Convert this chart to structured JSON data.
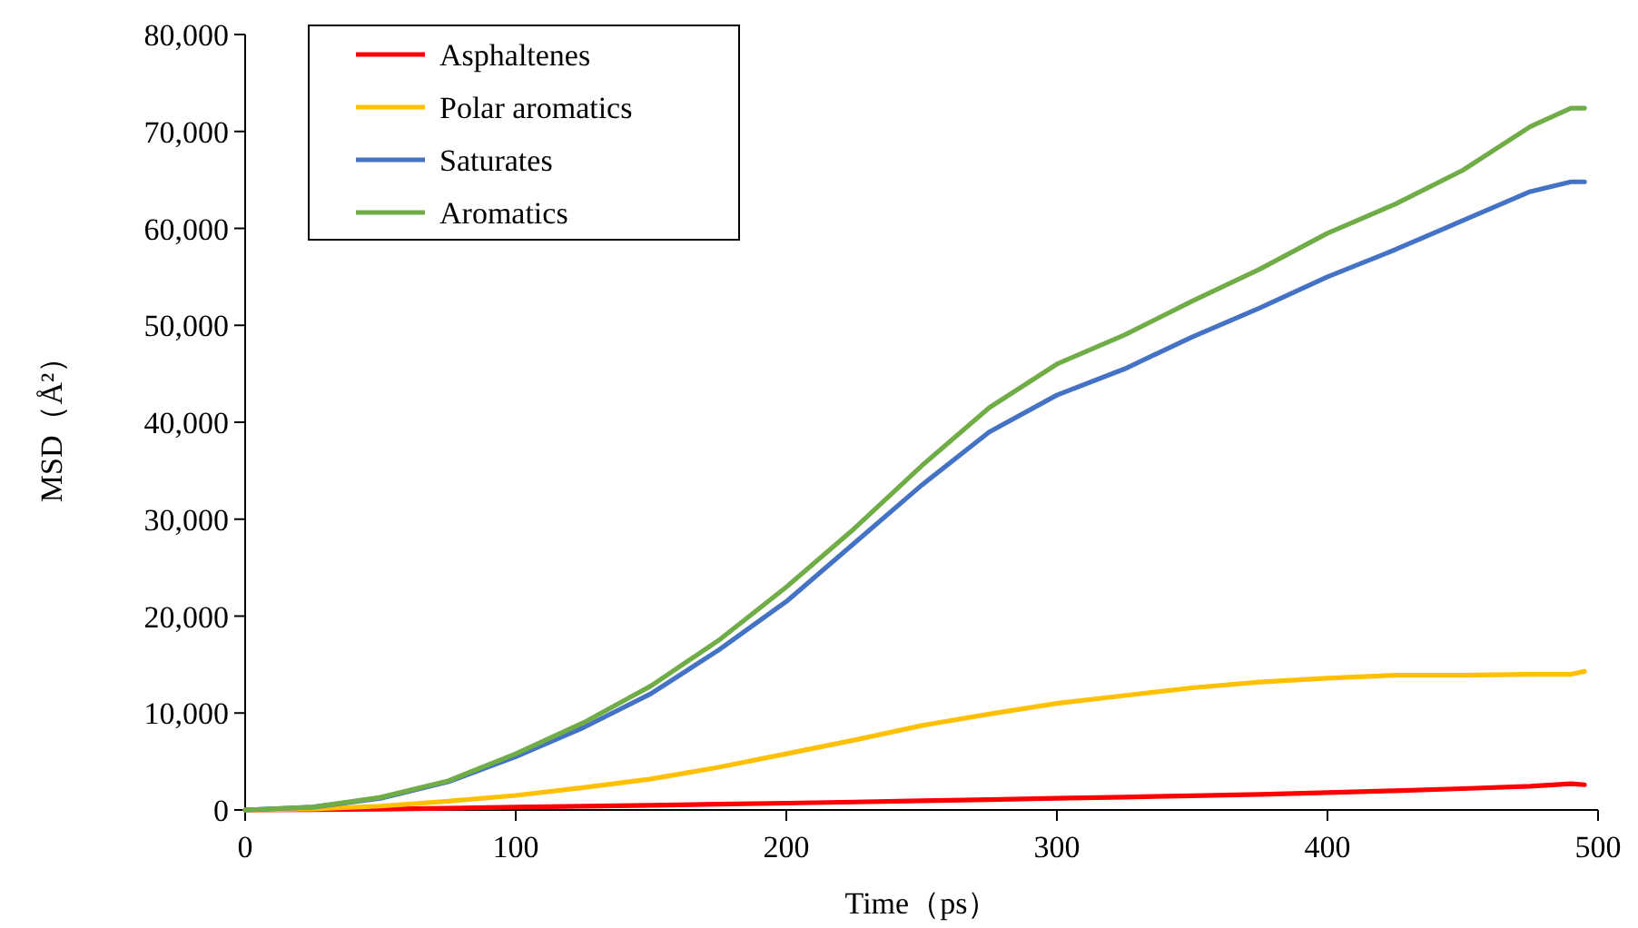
{
  "chart_data": {
    "type": "line",
    "xlabel": "Time（ps）",
    "ylabel": "MSD（Å²）",
    "xlim": [
      0,
      500
    ],
    "ylim": [
      0,
      80000
    ],
    "xticks": [
      0,
      100,
      200,
      300,
      400,
      500
    ],
    "yticks": [
      0,
      {
        "value": 10000,
        "label": "10,000"
      },
      {
        "value": 20000,
        "label": "20,000"
      },
      {
        "value": 30000,
        "label": "30,000"
      },
      {
        "value": 40000,
        "label": "40,000"
      },
      {
        "value": 50000,
        "label": "50,000"
      },
      {
        "value": 60000,
        "label": "60,000"
      },
      {
        "value": 70000,
        "label": "70,000"
      },
      {
        "value": 80000,
        "label": "80,000"
      }
    ],
    "legend": "top left",
    "grid": false,
    "marker": "none",
    "line_style": "solid",
    "x": [
      0,
      25,
      50,
      75,
      100,
      125,
      150,
      175,
      200,
      225,
      250,
      275,
      300,
      325,
      350,
      375,
      400,
      425,
      450,
      475,
      490,
      495
    ],
    "series": [
      {
        "name": "Asphaltenes",
        "color": "#ff0000",
        "values": [
          0,
          30,
          80,
          170,
          300,
          390,
          480,
          590,
          700,
          820,
          950,
          1070,
          1200,
          1330,
          1460,
          1600,
          1800,
          1980,
          2200,
          2450,
          2700,
          2600
        ]
      },
      {
        "name": "Polar aromatics",
        "color": "#ffc000",
        "values": [
          0,
          100,
          400,
          900,
          1500,
          2300,
          3200,
          4400,
          5800,
          7200,
          8700,
          9900,
          11000,
          11800,
          12600,
          13200,
          13600,
          13900,
          13900,
          14000,
          14000,
          14300
        ]
      },
      {
        "name": "Saturates",
        "color": "#4472c4",
        "values": [
          0,
          300,
          1200,
          2900,
          5500,
          8500,
          12000,
          16500,
          21500,
          27500,
          33500,
          39000,
          42800,
          45500,
          48800,
          51800,
          55000,
          57800,
          60800,
          63800,
          64800,
          64800
        ]
      },
      {
        "name": "Aromatics",
        "color": "#70ad47",
        "values": [
          0,
          300,
          1300,
          3000,
          5800,
          9000,
          12800,
          17500,
          23000,
          29000,
          35500,
          41500,
          46000,
          49000,
          52500,
          55800,
          59500,
          62500,
          66000,
          70500,
          72400,
          72400
        ]
      }
    ]
  }
}
